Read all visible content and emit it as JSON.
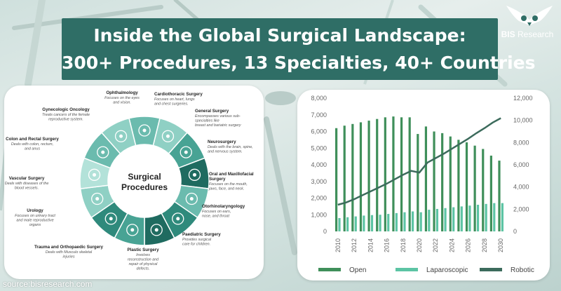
{
  "header": {
    "title_line1": "Inside the Global Surgical Landscape:",
    "title_line2": "300+ Procedures, 13 Specialties, 40+ Countries",
    "logo_text_bold": "BIS",
    "logo_text_rest": " Research"
  },
  "wheel": {
    "center_line1": "Surgical",
    "center_line2": "Procedures",
    "specialties": [
      {
        "name": "Ophthalmology",
        "desc": [
          "Focuses on the eyes",
          "and vision."
        ],
        "icon": "eye-icon"
      },
      {
        "name": "Cardiothoracic Surgery",
        "desc": [
          "Focuses on heart, lungs",
          "and chest surgeries."
        ],
        "icon": "heart-icon"
      },
      {
        "name": "General Surgery",
        "desc": [
          "Encompasses various sub-",
          "specialties like",
          "breast and bariatric surgery"
        ],
        "icon": "scalpel-icon"
      },
      {
        "name": "Neurosurgery",
        "desc": [
          "Deals with the brain, spine,",
          "and nervous system."
        ],
        "icon": "brain-icon"
      },
      {
        "name": "Oral and Maxillofacial",
        "name2": "Surgery",
        "desc": [
          "Focuses on the mouth,",
          "jaws, face, and neck."
        ],
        "icon": "mouth-icon"
      },
      {
        "name": "Otorhinolaryngology",
        "desc": [
          "Focuses on ears,",
          "nose, and throat"
        ],
        "icon": "ear-icon"
      },
      {
        "name": "Paediatric Surgery",
        "desc": [
          "Provides surgical",
          "care for children."
        ],
        "icon": "child-icon"
      },
      {
        "name": "Plastic Surgery",
        "desc": [
          "Involves",
          "reconstruction and",
          "repair of physical",
          "defects."
        ],
        "icon": "face-icon"
      },
      {
        "name": "Trauma and Orthopaedic Surgery",
        "desc": [
          "Deals with Musculo skeletal",
          "injuries"
        ],
        "icon": "bone-icon"
      },
      {
        "name": "Urology",
        "desc": [
          "Focuses on urinary tract",
          "and male reproductive",
          "organs"
        ],
        "icon": "kidney-icon"
      },
      {
        "name": "Vascular Surgery",
        "desc": [
          "Deals with diseases of the",
          "blood vessels."
        ],
        "icon": "vessel-icon"
      },
      {
        "name": "Colon and Rectal Surgery",
        "desc": [
          "Deals with colon, rectum,",
          "and anus"
        ],
        "icon": "colon-icon"
      },
      {
        "name": "Gynecologic Oncology",
        "desc": [
          "Treats cancers of the female",
          "reproductive system."
        ],
        "icon": "uterus-icon"
      }
    ],
    "colors": [
      "#1f6b60",
      "#2f8a7c",
      "#48a394",
      "#6bbbae",
      "#8fd0c4",
      "#b3e2d9"
    ]
  },
  "chart_data": {
    "type": "bar",
    "x": [
      "2010",
      "2011",
      "2012",
      "2013",
      "2014",
      "2015",
      "2016",
      "2017",
      "2018",
      "2019",
      "2020",
      "2021",
      "2022",
      "2023",
      "2024",
      "2025",
      "2026",
      "2027",
      "2028",
      "2029",
      "2030"
    ],
    "x_tick_labels": [
      "2010",
      "2012",
      "2014",
      "2016",
      "2018",
      "2020",
      "2022",
      "2024",
      "2026",
      "2028",
      "2030"
    ],
    "series": [
      {
        "name": "Open",
        "axis": "left",
        "kind": "bar",
        "color": "#3f8f5a",
        "values": [
          6200,
          6350,
          6450,
          6550,
          6650,
          6750,
          6850,
          6900,
          6850,
          6850,
          5850,
          6300,
          6000,
          5900,
          5700,
          5500,
          5350,
          5150,
          4950,
          4550,
          4250
        ]
      },
      {
        "name": "Laparoscopic",
        "axis": "left",
        "kind": "bar",
        "color": "#5cc4a4",
        "values": [
          800,
          850,
          900,
          950,
          980,
          1000,
          1050,
          1100,
          1150,
          1200,
          1150,
          1300,
          1350,
          1400,
          1450,
          1500,
          1550,
          1600,
          1650,
          1700,
          1700
        ]
      },
      {
        "name": "Robotic",
        "axis": "right",
        "kind": "line",
        "color": "#3c6b5c",
        "values": [
          2400,
          2600,
          2900,
          3250,
          3600,
          3950,
          4300,
          4700,
          5100,
          5450,
          5300,
          6200,
          6600,
          7000,
          7450,
          7900,
          8350,
          8850,
          9300,
          9800,
          10200
        ]
      }
    ],
    "y_left": {
      "ylim": [
        0,
        8000
      ],
      "ticks": [
        "0",
        "1,000",
        "2,000",
        "3,000",
        "4,000",
        "5,000",
        "6,000",
        "7,000",
        "8,000"
      ]
    },
    "y_right": {
      "ylim": [
        0,
        12000
      ],
      "ticks": [
        "0",
        "2,000",
        "4,000",
        "6,000",
        "8,000",
        "10,000",
        "12,000"
      ]
    },
    "legend_position": "bottom",
    "grid": false
  },
  "footer": {
    "source": "source:bisresearch.com"
  }
}
